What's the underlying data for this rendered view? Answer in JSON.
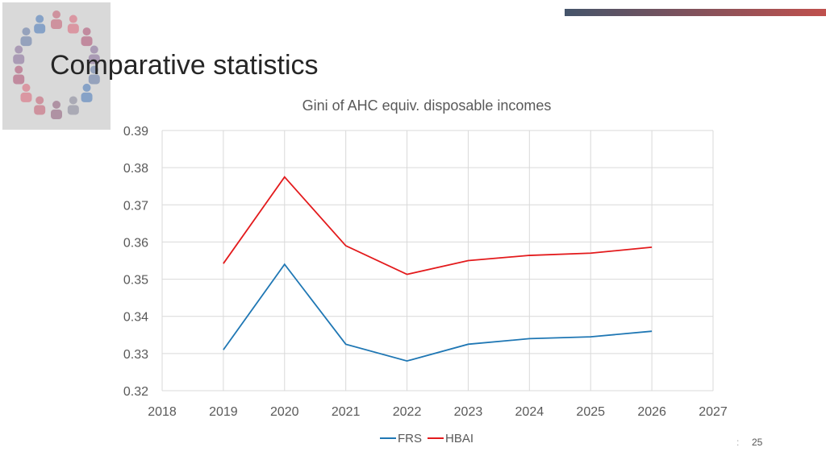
{
  "slide": {
    "title": "Comparative statistics",
    "page_number": "25",
    "accent_gradient": [
      "#44546a",
      "#c0504d"
    ]
  },
  "chart_data": {
    "type": "line",
    "title": "Gini of AHC equiv. disposable incomes",
    "xlabel": "",
    "ylabel": "",
    "xlim": [
      2018,
      2027
    ],
    "ylim": [
      0.32,
      0.39
    ],
    "x_ticks": [
      "2018",
      "2019",
      "2020",
      "2021",
      "2022",
      "2023",
      "2024",
      "2025",
      "2026",
      "2027"
    ],
    "y_ticks": [
      "0.32",
      "0.33",
      "0.34",
      "0.35",
      "0.36",
      "0.37",
      "0.38",
      "0.39"
    ],
    "grid": true,
    "legend_position": "bottom",
    "x": [
      2019,
      2020,
      2021,
      2022,
      2023,
      2024,
      2025,
      2026
    ],
    "series": [
      {
        "name": "FRS",
        "color": "#1f77b4",
        "values": [
          0.331,
          0.354,
          0.3325,
          0.328,
          0.3325,
          0.334,
          0.3345,
          0.336
        ]
      },
      {
        "name": "HBAI",
        "color": "#e31a1c",
        "values": [
          0.3542,
          0.3775,
          0.359,
          0.3513,
          0.355,
          0.3564,
          0.357,
          0.3586
        ]
      }
    ]
  }
}
